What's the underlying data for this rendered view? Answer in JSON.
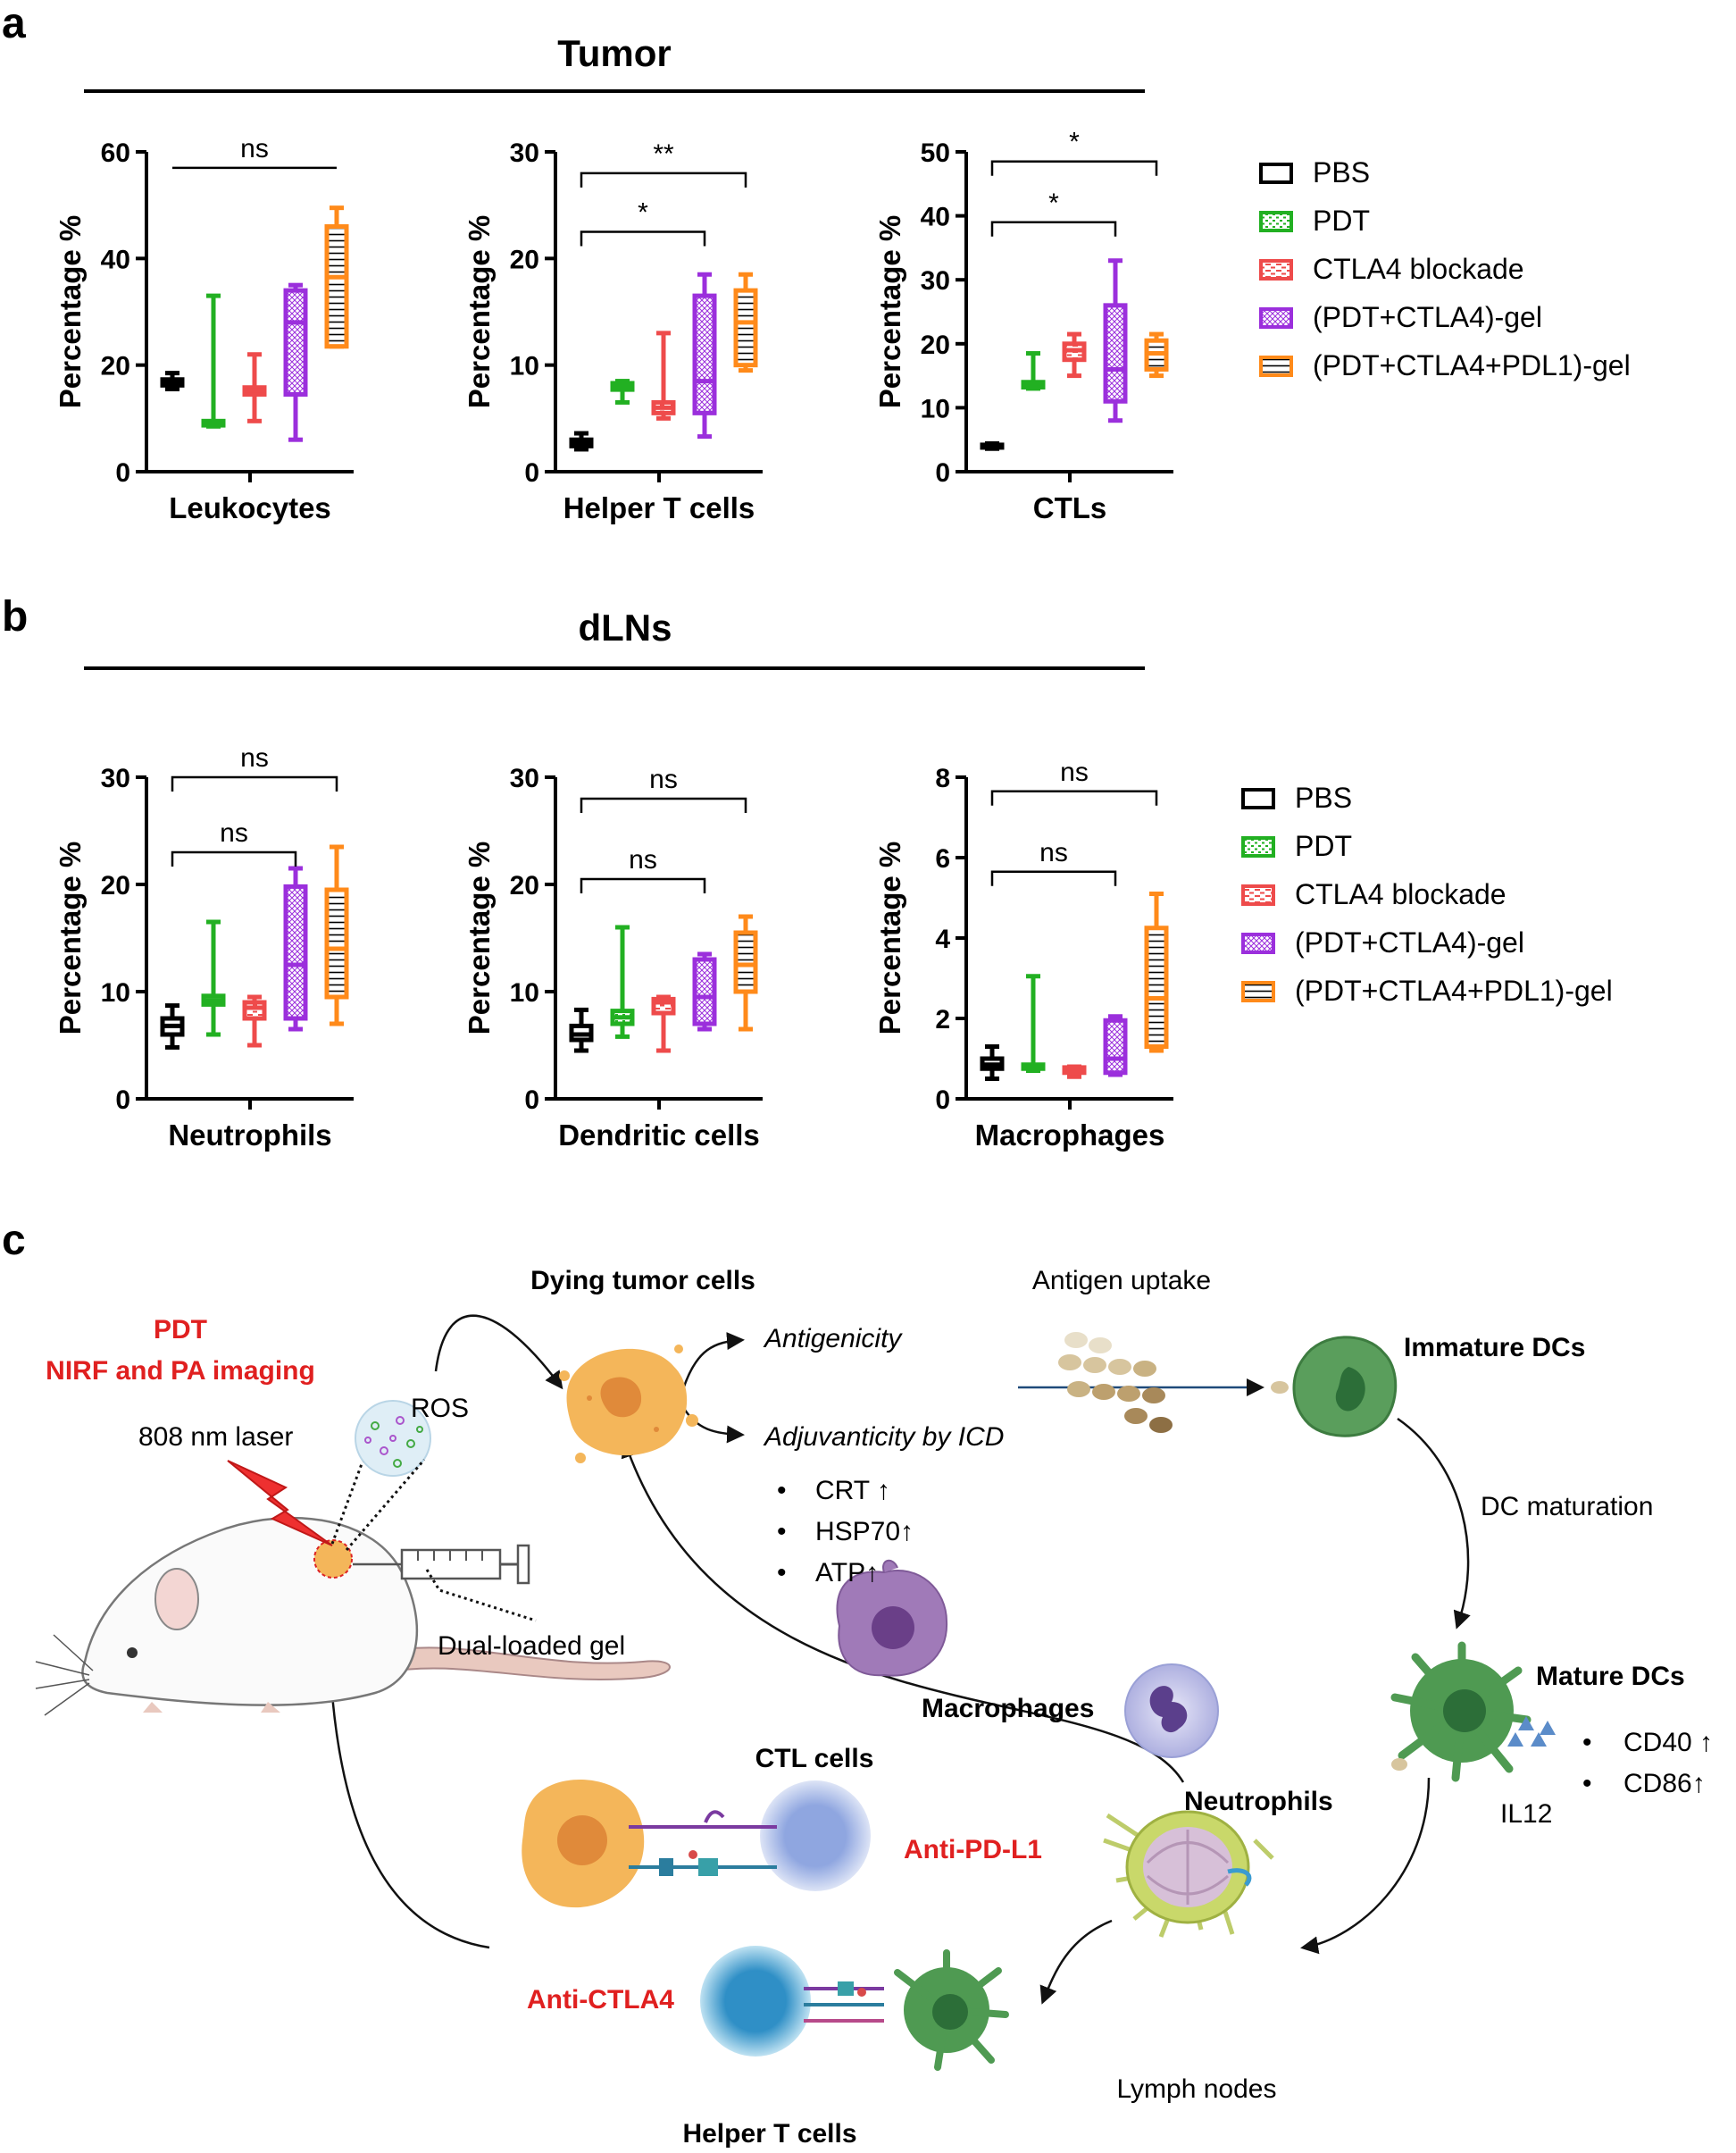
{
  "panel_letters": [
    "a",
    "b",
    "c"
  ],
  "section_titles": {
    "a": "Tumor",
    "b": "dLNs"
  },
  "legend": {
    "entries": [
      "PBS",
      "PDT",
      "CTLA4 blockade",
      "(PDT+CTLA4)-gel",
      "(PDT+CTLA4+PDL1)-gel"
    ],
    "colors": [
      "#000000",
      "#22b022",
      "#ee4b4b",
      "#9b2fdc",
      "#ff8a1a"
    ],
    "patterns": [
      "none",
      "dots",
      "dashes",
      "crosshatch",
      "hlines"
    ]
  },
  "chart_data": [
    {
      "type": "box",
      "panel": "a",
      "category_label": "Leukocytes",
      "ylabel": "Percentage %",
      "ylim": [
        0,
        60
      ],
      "yticks": [
        0,
        20,
        40,
        60
      ],
      "groups": [
        "PBS",
        "PDT",
        "CTLA4 blockade",
        "(PDT+CTLA4)-gel",
        "(PDT+CTLA4+PDL1)-gel"
      ],
      "boxes": [
        {
          "min": 15.5,
          "q1": 16.2,
          "median": 16.6,
          "q3": 17.3,
          "max": 18.5
        },
        {
          "min": 8.5,
          "q1": 8.7,
          "median": 9.0,
          "q3": 9.5,
          "max": 33
        },
        {
          "min": 9.5,
          "q1": 14.5,
          "median": 15.2,
          "q3": 15.8,
          "max": 22
        },
        {
          "min": 6,
          "q1": 14.5,
          "median": 28,
          "q3": 34,
          "max": 35
        },
        {
          "min": 23.5,
          "q1": 23.5,
          "median": 36.5,
          "q3": 46,
          "max": 49.5
        }
      ],
      "comparisons": [
        {
          "from": 0,
          "to": 4,
          "label": "ns",
          "y": 57
        }
      ]
    },
    {
      "type": "box",
      "panel": "a",
      "category_label": "Helper T cells",
      "ylabel": "Percentage %",
      "ylim": [
        0,
        30
      ],
      "yticks": [
        0,
        10,
        20,
        30
      ],
      "groups": [
        "PBS",
        "PDT",
        "CTLA4 blockade",
        "(PDT+CTLA4)-gel",
        "(PDT+CTLA4+PDL1)-gel"
      ],
      "boxes": [
        {
          "min": 2.1,
          "q1": 2.4,
          "median": 2.7,
          "q3": 3.0,
          "max": 3.6
        },
        {
          "min": 6.5,
          "q1": 7.7,
          "median": 8.0,
          "q3": 8.3,
          "max": 8.5
        },
        {
          "min": 5.0,
          "q1": 5.5,
          "median": 6.0,
          "q3": 6.5,
          "max": 13
        },
        {
          "min": 3.3,
          "q1": 5.5,
          "median": 8.5,
          "q3": 16.5,
          "max": 18.5
        },
        {
          "min": 9.5,
          "q1": 10,
          "median": 14,
          "q3": 17,
          "max": 18.5
        }
      ],
      "comparisons": [
        {
          "from": 0,
          "to": 3,
          "label": "*",
          "y": 22.5
        },
        {
          "from": 0,
          "to": 4,
          "label": "**",
          "y": 28
        }
      ]
    },
    {
      "type": "box",
      "panel": "a",
      "category_label": "CTLs",
      "ylabel": "Percentage %",
      "ylim": [
        0,
        50
      ],
      "yticks": [
        0,
        10,
        20,
        30,
        40,
        50
      ],
      "groups": [
        "PBS",
        "PDT",
        "CTLA4 blockade",
        "(PDT+CTLA4)-gel",
        "(PDT+CTLA4+PDL1)-gel"
      ],
      "boxes": [
        {
          "min": 3.6,
          "q1": 3.8,
          "median": 4.0,
          "q3": 4.2,
          "max": 4.4
        },
        {
          "min": 13,
          "q1": 13.2,
          "median": 13.6,
          "q3": 14,
          "max": 18.5
        },
        {
          "min": 15,
          "q1": 17.5,
          "median": 19,
          "q3": 20,
          "max": 21.5
        },
        {
          "min": 8,
          "q1": 11,
          "median": 16,
          "q3": 26,
          "max": 33
        },
        {
          "min": 15,
          "q1": 16,
          "median": 18.5,
          "q3": 20.5,
          "max": 21.5
        }
      ],
      "comparisons": [
        {
          "from": 0,
          "to": 3,
          "label": "*",
          "y": 39
        },
        {
          "from": 0,
          "to": 4,
          "label": "*",
          "y": 48.5
        }
      ]
    },
    {
      "type": "box",
      "panel": "b",
      "category_label": "Neutrophils",
      "ylabel": "Percentage %",
      "ylim": [
        0,
        30
      ],
      "yticks": [
        0,
        10,
        20,
        30
      ],
      "groups": [
        "PBS",
        "PDT",
        "CTLA4 blockade",
        "(PDT+CTLA4)-gel",
        "(PDT+CTLA4+PDL1)-gel"
      ],
      "boxes": [
        {
          "min": 4.8,
          "q1": 6.0,
          "median": 6.8,
          "q3": 7.5,
          "max": 8.7
        },
        {
          "min": 6.0,
          "q1": 8.8,
          "median": 9.2,
          "q3": 9.6,
          "max": 16.5
        },
        {
          "min": 5.0,
          "q1": 7.5,
          "median": 8.5,
          "q3": 9.0,
          "max": 9.5
        },
        {
          "min": 6.5,
          "q1": 7.5,
          "median": 12.5,
          "q3": 19.8,
          "max": 21.5
        },
        {
          "min": 7,
          "q1": 9.5,
          "median": 14,
          "q3": 19.5,
          "max": 23.5
        }
      ],
      "comparisons": [
        {
          "from": 0,
          "to": 3,
          "label": "ns",
          "y": 23
        },
        {
          "from": 0,
          "to": 4,
          "label": "ns",
          "y": 30
        }
      ]
    },
    {
      "type": "box",
      "panel": "b",
      "category_label": "Dendritic cells",
      "ylabel": "Percentage %",
      "ylim": [
        0,
        30
      ],
      "yticks": [
        0,
        10,
        20,
        30
      ],
      "groups": [
        "PBS",
        "PDT",
        "CTLA4 blockade",
        "(PDT+CTLA4)-gel",
        "(PDT+CTLA4+PDL1)-gel"
      ],
      "boxes": [
        {
          "min": 4.5,
          "q1": 5.5,
          "median": 6.0,
          "q3": 6.8,
          "max": 8.3
        },
        {
          "min": 5.8,
          "q1": 7.0,
          "median": 7.6,
          "q3": 8.2,
          "max": 16
        },
        {
          "min": 4.5,
          "q1": 8.0,
          "median": 9.0,
          "q3": 9.3,
          "max": 9.5
        },
        {
          "min": 6.5,
          "q1": 7.0,
          "median": 9.5,
          "q3": 13.0,
          "max": 13.5
        },
        {
          "min": 6.5,
          "q1": 10.0,
          "median": 12.5,
          "q3": 15.5,
          "max": 17
        }
      ],
      "comparisons": [
        {
          "from": 0,
          "to": 3,
          "label": "ns",
          "y": 20.5
        },
        {
          "from": 0,
          "to": 4,
          "label": "ns",
          "y": 28
        }
      ]
    },
    {
      "type": "box",
      "panel": "b",
      "category_label": "Macrophages",
      "ylabel": "Percentage %",
      "ylim": [
        0,
        8
      ],
      "yticks": [
        0,
        2,
        4,
        6,
        8
      ],
      "groups": [
        "PBS",
        "PDT",
        "CTLA4 blockade",
        "(PDT+CTLA4)-gel",
        "(PDT+CTLA4+PDL1)-gel"
      ],
      "boxes": [
        {
          "min": 0.5,
          "q1": 0.75,
          "median": 0.85,
          "q3": 1.0,
          "max": 1.3
        },
        {
          "min": 0.7,
          "q1": 0.75,
          "median": 0.8,
          "q3": 0.85,
          "max": 3.05
        },
        {
          "min": 0.55,
          "q1": 0.65,
          "median": 0.7,
          "q3": 0.78,
          "max": 0.8
        },
        {
          "min": 0.6,
          "q1": 0.65,
          "median": 1.0,
          "q3": 1.95,
          "max": 2.05
        },
        {
          "min": 1.2,
          "q1": 1.3,
          "median": 2.5,
          "q3": 4.25,
          "max": 5.1
        }
      ],
      "comparisons": [
        {
          "from": 0,
          "to": 3,
          "label": "ns",
          "y": 5.65
        },
        {
          "from": 0,
          "to": 4,
          "label": "ns",
          "y": 7.65
        }
      ]
    }
  ],
  "schematic": {
    "labels": {
      "pdt": "PDT",
      "imaging": "NIRF and PA imaging",
      "laser": "808 nm laser",
      "ros": "ROS",
      "dying": "Dying tumor cells",
      "antigenicity": "Antigenicity",
      "adjuvanticity": "Adjuvanticity by ICD",
      "crt": "CRT ↑",
      "hsp70": "HSP70↑",
      "atp": "ATP↑",
      "antigen_uptake": "Antigen uptake",
      "immature_dcs": "Immature DCs",
      "dc_maturation": "DC maturation",
      "mature_dcs": "Mature DCs",
      "cd40": "CD40 ↑",
      "cd86": "CD86↑",
      "il12": "IL12",
      "gel": "Dual-loaded gel",
      "macrophages": "Macrophages",
      "neutrophils": "Neutrophils",
      "ctl_cells": "CTL cells",
      "anti_pdl1": "Anti-PD-L1",
      "anti_ctla4": "Anti-CTLA4",
      "helper_t": "Helper T cells",
      "lymph_nodes": "Lymph nodes"
    },
    "colors": {
      "red_text": "#e02020",
      "tumor": "#f4b65a",
      "tumor_core": "#e08a3a",
      "dc": "#4f9a52",
      "dc_core": "#2c6e38",
      "t_cell": "#9fb5e6",
      "helper_t": "#4aa6d6",
      "macrophage": "#a07ab8",
      "neutrophil": "#b8b6e6",
      "lymph": "#c9d86a"
    }
  }
}
